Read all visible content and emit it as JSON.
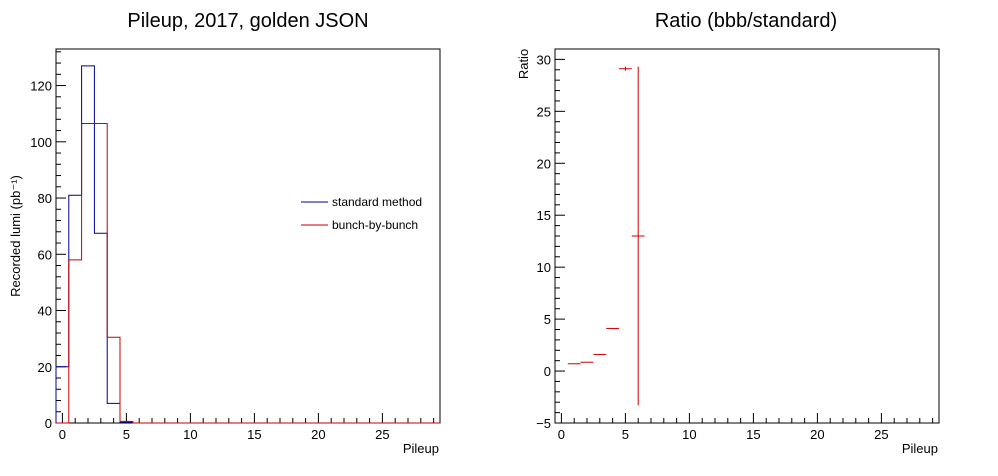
{
  "chart_data": [
    {
      "type": "histogram",
      "title": "Pileup, 2017, golden JSON",
      "xlabel": "Pileup",
      "ylabel": "Recorded lumi (pb⁻¹)",
      "xlim": [
        -0.5,
        29.5
      ],
      "ylim": [
        0,
        133
      ],
      "xticks": [
        0,
        5,
        10,
        15,
        20,
        25
      ],
      "yticks": [
        0,
        20,
        40,
        60,
        80,
        100,
        120
      ],
      "bin_edges": [
        -0.5,
        0.5,
        1.5,
        2.5,
        3.5,
        4.5,
        5.5,
        6.5,
        7.5,
        8.5,
        9.5,
        10.5,
        11.5,
        12.5,
        13.5,
        14.5,
        15.5,
        16.5,
        17.5,
        18.5,
        19.5,
        20.5,
        21.5,
        22.5,
        23.5,
        24.5,
        25.5,
        26.5,
        27.5,
        28.5,
        29.5
      ],
      "series": [
        {
          "name": "standard method",
          "color": "#000099",
          "values": [
            20,
            81,
            127,
            67.5,
            7,
            0.3,
            0,
            0,
            0,
            0,
            0,
            0,
            0,
            0,
            0,
            0,
            0,
            0,
            0,
            0,
            0,
            0,
            0,
            0,
            0,
            0,
            0,
            0,
            0,
            0
          ]
        },
        {
          "name": "bunch-by-bunch",
          "color": "#cc0000",
          "values": [
            0,
            58,
            106.5,
            106.5,
            30.5,
            0.6,
            0,
            0,
            0,
            0,
            0,
            0,
            0,
            0,
            0,
            0,
            0,
            0,
            0,
            0,
            0,
            0,
            0,
            0,
            0,
            0,
            0,
            0,
            0,
            0
          ]
        }
      ],
      "legend_position": "right"
    },
    {
      "type": "scatter",
      "title": "Ratio (bbb/standard)",
      "xlabel": "Pileup",
      "ylabel": "Ratio",
      "xlim": [
        -0.5,
        29.5
      ],
      "ylim": [
        -5,
        31
      ],
      "xticks": [
        0,
        5,
        10,
        15,
        20,
        25
      ],
      "yticks": [
        -5,
        0,
        5,
        10,
        15,
        20,
        25,
        30
      ],
      "color": "#cc0000",
      "points": [
        {
          "x": 1,
          "y": 0.7,
          "yerr": 0
        },
        {
          "x": 2,
          "y": 0.85,
          "yerr": 0
        },
        {
          "x": 3,
          "y": 1.6,
          "yerr": 0
        },
        {
          "x": 4,
          "y": 4.1,
          "yerr": 0
        },
        {
          "x": 5,
          "y": 29.1,
          "yerr": 0.2
        },
        {
          "x": 6,
          "y": 13,
          "yerr": 16.3
        }
      ]
    }
  ]
}
